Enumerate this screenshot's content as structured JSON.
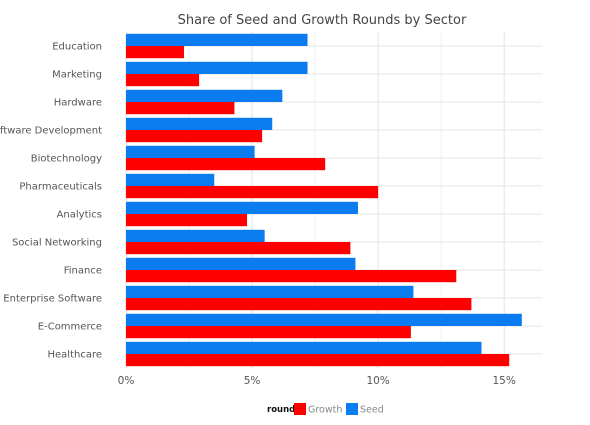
{
  "chart_data": {
    "type": "bar",
    "orientation": "horizontal",
    "title": "Share of Seed and Growth Rounds by Sector",
    "xlabel": "",
    "ylabel": "",
    "categories": [
      "Education",
      "Marketing",
      "Hardware",
      "Software Development",
      "Biotechnology",
      "Pharmaceuticals",
      "Analytics",
      "Social Networking",
      "Finance",
      "Enterprise Software",
      "E-Commerce",
      "Healthcare"
    ],
    "series": [
      {
        "name": "Seed",
        "color": "#0a7cf0",
        "values": [
          7.2,
          7.2,
          6.2,
          5.8,
          5.1,
          3.5,
          9.2,
          5.5,
          9.1,
          11.4,
          15.7,
          14.1
        ]
      },
      {
        "name": "Growth",
        "color": "#ff0000",
        "values": [
          2.3,
          2.9,
          4.3,
          5.4,
          7.9,
          10.0,
          4.8,
          8.9,
          13.1,
          13.7,
          11.3,
          15.2
        ]
      }
    ],
    "xlim": [
      0,
      16.5
    ],
    "x_ticks": [
      0,
      5,
      10,
      15
    ],
    "x_tick_labels": [
      "0%",
      "5%",
      "10%",
      "15%"
    ],
    "grid": true,
    "legend": {
      "title": "round",
      "position": "bottom",
      "entries": [
        {
          "label": "Growth",
          "color": "#ff0000"
        },
        {
          "label": "Seed",
          "color": "#0a7cf0"
        }
      ]
    }
  }
}
